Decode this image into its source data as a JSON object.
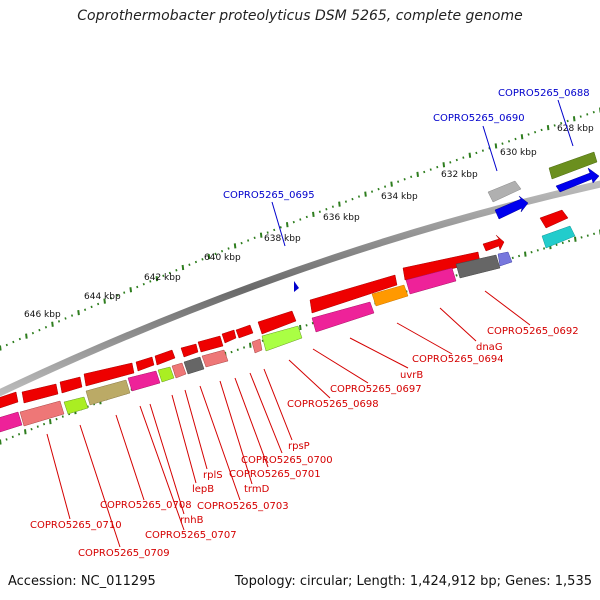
{
  "title": "Coprothermobacter proteolyticus DSM 5265, complete genome",
  "accession": "Accession: NC_011295",
  "topology": "Topology: circular; Length: 1,424,912 bp; Genes: 1,535",
  "colors": {
    "backbone": "#8a8a8a",
    "tick": "#2e7d1e",
    "label_red": "#d40000",
    "label_blue": "#0000cc",
    "blue_gene": "#0000ee",
    "red_gene": "#ee0000",
    "magenta_gene": "#ee2299"
  },
  "ticks": [
    {
      "label": "628 kbp"
    },
    {
      "label": "630 kbp"
    },
    {
      "label": "632 kbp"
    },
    {
      "label": "634 kbp"
    },
    {
      "label": "636 kbp"
    },
    {
      "label": "638 kbp"
    },
    {
      "label": "640 kbp"
    },
    {
      "label": "642 kbp"
    },
    {
      "label": "644 kbp"
    },
    {
      "label": "646 kbp"
    }
  ],
  "gene_labels_blue": [
    "COPRO5265_0688",
    "COPRO5265_0690",
    "COPRO5265_0695"
  ],
  "gene_labels_red": [
    "COPRO5265_0692",
    "dnaG",
    "COPRO5265_0694",
    "uvrB",
    "COPRO5265_0697",
    "COPRO5265_0698",
    "rpsP",
    "COPRO5265_0700",
    "COPRO5265_0701",
    "trmD",
    "COPRO5265_0703",
    "rplS",
    "lepB",
    "rnhB",
    "COPRO5265_0707",
    "COPRO5265_0708",
    "COPRO5265_0709",
    "COPRO5265_0710"
  ]
}
